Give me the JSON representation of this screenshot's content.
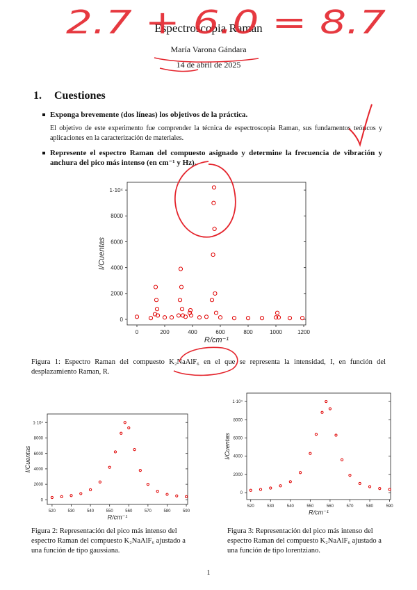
{
  "annotations": {
    "handwritten_score": "2.7 + 6.0 = 8.7"
  },
  "header": {
    "title": "Espectroscopia Raman",
    "author": "María Varona Gándara",
    "date": "14 de abril de 2025"
  },
  "section": {
    "number": "1.",
    "title": "Cuestiones"
  },
  "questions": [
    {
      "question": "Exponga brevemente (dos líneas) los objetivos de la práctica.",
      "answer": "El objetivo de este experimento fue comprender la técnica de espectroscopia Raman, sus fundamentos teóricos y aplicaciones en la caracterización de materiales."
    },
    {
      "question": "Represente el espectro Raman del compuesto asignado y determine la frecuencia de vibración y anchura del pico más intenso (en cm⁻¹ y Hz)."
    }
  ],
  "figures": [
    {
      "type": "scatter",
      "caption": "Figura 1: Espectro Raman del compuesto K₂NaAlF₆ en el que se representa la intensidad, I, en función del desplazamiento Raman, R.",
      "xlabel": "R/cm⁻¹",
      "ylabel": "I/Cuentas",
      "color": "#e00000",
      "x": [
        0,
        100,
        130,
        135,
        140,
        145,
        150,
        200,
        250,
        300,
        310,
        315,
        320,
        325,
        330,
        350,
        380,
        385,
        390,
        450,
        500,
        540,
        548,
        552,
        555,
        558,
        562,
        570,
        600,
        700,
        800,
        900,
        1000,
        1010,
        1020,
        1100,
        1190
      ],
      "y": [
        200,
        100,
        400,
        2500,
        1500,
        800,
        300,
        150,
        150,
        300,
        1500,
        3900,
        2500,
        800,
        300,
        200,
        500,
        700,
        300,
        150,
        200,
        1500,
        5000,
        9000,
        10200,
        7000,
        2000,
        500,
        150,
        100,
        100,
        100,
        150,
        500,
        150,
        100,
        100
      ],
      "xlim": [
        -70,
        1215
      ],
      "ylim": [
        -430,
        10600
      ],
      "xticks": [
        0,
        200,
        400,
        600,
        800,
        1000,
        1200
      ],
      "yticks": [
        0,
        2000,
        4000,
        6000,
        8000,
        {
          "value": 10000,
          "label": "1·10⁴"
        }
      ]
    },
    {
      "type": "scatter",
      "caption": "Figura 2: Representación del pico más intenso del espectro Raman del compuesto K₂NaAlF₆ ajustado a una función de tipo gaussiana.",
      "xlabel": "R/cm⁻¹",
      "ylabel": "I/Cuentas",
      "color": "#e00000",
      "x": [
        520,
        525,
        530,
        535,
        540,
        545,
        550,
        553,
        556,
        558,
        560,
        563,
        566,
        570,
        575,
        580,
        585,
        590
      ],
      "y": [
        300,
        400,
        550,
        800,
        1300,
        2300,
        4200,
        6200,
        8600,
        10000,
        9300,
        6500,
        3800,
        2000,
        1100,
        700,
        500,
        400
      ],
      "xlim": [
        517.5,
        590.7
      ],
      "ylim": [
        -600,
        11100
      ],
      "xticks": [
        520,
        530,
        540,
        550,
        560,
        570,
        580,
        590
      ],
      "yticks": [
        0,
        2000,
        4000,
        6000,
        8000,
        {
          "value": 10000,
          "label": "1·10⁴"
        }
      ]
    },
    {
      "type": "scatter",
      "caption": "Figura 3: Representación del pico más intenso del espectro Raman del compuesto K₂NaAlF₆ ajustado a una función de tipo lorentziano.",
      "xlabel": "R/cm⁻¹",
      "ylabel": "I/Cuentas",
      "color": "#e00000",
      "x": [
        520,
        525,
        530,
        535,
        540,
        545,
        550,
        553,
        556,
        558,
        560,
        563,
        566,
        570,
        575,
        580,
        585,
        590
      ],
      "y": [
        250,
        350,
        500,
        750,
        1200,
        2200,
        4300,
        6400,
        8800,
        10000,
        9200,
        6300,
        3600,
        1900,
        1000,
        650,
        450,
        350
      ],
      "xlim": [
        518,
        590.5
      ],
      "ylim": [
        -760,
        10920
      ],
      "xticks": [
        520,
        530,
        540,
        550,
        560,
        570,
        580,
        590
      ],
      "yticks": [
        0,
        2000,
        4000,
        6000,
        8000,
        {
          "value": 10000,
          "label": "1·10⁴"
        }
      ]
    }
  ],
  "page_number": "1"
}
